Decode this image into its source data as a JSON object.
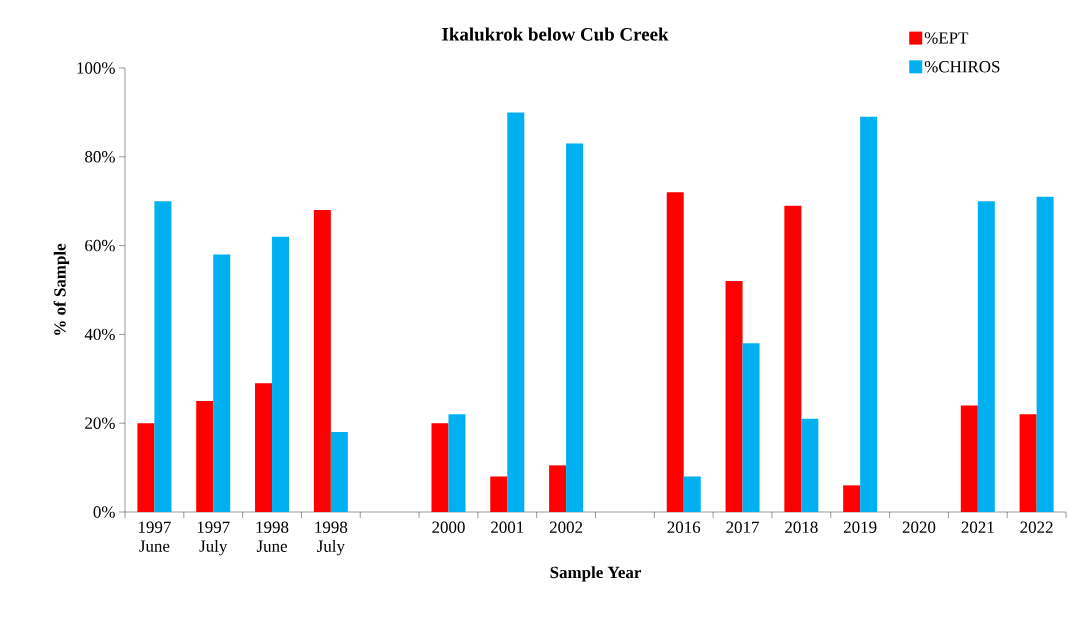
{
  "chart_data": {
    "type": "bar",
    "title": "Ikalukrok below Cub Creek",
    "xlabel": "Sample Year",
    "ylabel": "% of Sample",
    "categories": [
      "1997 June",
      "1997 July",
      "1998 June",
      "1998 July",
      null,
      "2000",
      "2001",
      "2002",
      null,
      "2016",
      "2017",
      "2018",
      "2019",
      "2020",
      "2021",
      "2022"
    ],
    "series": [
      {
        "name": "%EPT",
        "color": "#ff0000",
        "values": [
          20,
          25,
          29,
          68,
          null,
          20,
          8,
          10.5,
          null,
          72,
          52,
          69,
          6,
          null,
          24,
          22
        ]
      },
      {
        "name": "%CHIROS",
        "color": "#00b0f0",
        "values": [
          70,
          58,
          62,
          18,
          null,
          22,
          90,
          83,
          null,
          8,
          38,
          21,
          89,
          null,
          70,
          71
        ]
      }
    ],
    "ylim": [
      0,
      100
    ],
    "yticks": [
      {
        "value": 0,
        "label": "0%"
      },
      {
        "value": 20,
        "label": "20%"
      },
      {
        "value": 40,
        "label": "40%"
      },
      {
        "value": 60,
        "label": "60%"
      },
      {
        "value": 80,
        "label": "80%"
      },
      {
        "value": 100,
        "label": "100%"
      }
    ],
    "grid": false,
    "legend": "top right"
  }
}
